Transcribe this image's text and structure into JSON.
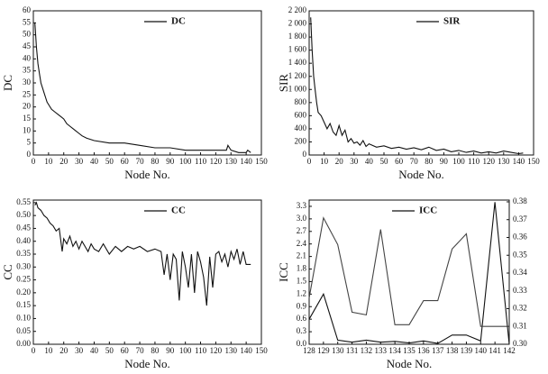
{
  "chart_data": [
    {
      "type": "line",
      "xlabel": "Node No.",
      "ylabel": "DC",
      "legend": "upper right",
      "xlim": [
        0,
        150
      ],
      "xticks": [
        0,
        10,
        20,
        30,
        40,
        50,
        60,
        70,
        80,
        90,
        100,
        110,
        120,
        130,
        140,
        150
      ],
      "ylim": [
        0,
        60
      ],
      "yticks": [
        0,
        5,
        10,
        15,
        20,
        25,
        30,
        35,
        40,
        45,
        50,
        55,
        60
      ],
      "series": [
        {
          "name": "DC",
          "color": "#111111",
          "x": [
            1,
            2,
            3,
            4,
            5,
            6,
            7,
            8,
            9,
            10,
            12,
            14,
            16,
            18,
            20,
            22,
            24,
            26,
            28,
            30,
            32,
            35,
            40,
            50,
            60,
            70,
            80,
            90,
            100,
            110,
            120,
            127,
            128,
            129,
            130,
            135,
            140,
            141,
            143
          ],
          "values": [
            55,
            45,
            38,
            34,
            30,
            28,
            26,
            24,
            22,
            21,
            19,
            18,
            17,
            16,
            15,
            13,
            12,
            11,
            10,
            9,
            8,
            7,
            6,
            5,
            5,
            4,
            3,
            3,
            2,
            2,
            2,
            2,
            4,
            3,
            2,
            1,
            1,
            2,
            1
          ]
        }
      ]
    },
    {
      "type": "line",
      "xlabel": "Node No.",
      "ylabel": "SIR",
      "legend": "upper right",
      "xlim": [
        0,
        150
      ],
      "xticks": [
        0,
        10,
        20,
        30,
        40,
        50,
        60,
        70,
        80,
        90,
        100,
        110,
        120,
        130,
        140,
        150
      ],
      "ylim": [
        0,
        2200
      ],
      "yticks": [
        0,
        200,
        400,
        600,
        800,
        {
          "value": 1000,
          "label": "1 000"
        },
        {
          "value": 1200,
          "label": "1 200"
        },
        {
          "value": 1400,
          "label": "1 400"
        },
        {
          "value": 1600,
          "label": "1 600"
        },
        {
          "value": 1800,
          "label": "1 800"
        },
        {
          "value": 2000,
          "label": "2 000"
        },
        {
          "value": 2200,
          "label": "2 200"
        }
      ],
      "series": [
        {
          "name": "SIR",
          "color": "#111111",
          "x": [
            1,
            2,
            3,
            4,
            5,
            6,
            8,
            10,
            12,
            14,
            16,
            18,
            20,
            22,
            24,
            26,
            28,
            30,
            32,
            34,
            36,
            38,
            40,
            45,
            50,
            55,
            60,
            65,
            70,
            75,
            80,
            85,
            90,
            95,
            100,
            105,
            110,
            115,
            120,
            125,
            130,
            135,
            140,
            143
          ],
          "values": [
            2100,
            1600,
            1200,
            1000,
            800,
            650,
            600,
            500,
            400,
            480,
            350,
            300,
            450,
            300,
            380,
            200,
            250,
            180,
            200,
            150,
            220,
            130,
            170,
            120,
            140,
            100,
            120,
            90,
            110,
            80,
            120,
            70,
            90,
            50,
            70,
            40,
            60,
            30,
            50,
            30,
            60,
            40,
            20,
            30
          ]
        }
      ]
    },
    {
      "type": "line",
      "xlabel": "Node No.",
      "ylabel": "CC",
      "legend": "upper right",
      "xlim": [
        0,
        150
      ],
      "xticks": [
        0,
        10,
        20,
        30,
        40,
        50,
        60,
        70,
        80,
        90,
        100,
        110,
        120,
        130,
        140,
        150
      ],
      "ylim": [
        0,
        0.56
      ],
      "yticks": [
        {
          "value": 0,
          "label": "0.00"
        },
        0.05,
        {
          "value": 0.1,
          "label": "0.10"
        },
        0.15,
        {
          "value": 0.2,
          "label": "0.20"
        },
        0.25,
        {
          "value": 0.3,
          "label": "0.30"
        },
        0.35,
        {
          "value": 0.4,
          "label": "0.40"
        },
        0.45,
        {
          "value": 0.5,
          "label": "0.50"
        },
        0.55
      ],
      "series": [
        {
          "name": "CC",
          "color": "#111111",
          "x": [
            1,
            2,
            3,
            5,
            7,
            9,
            11,
            13,
            15,
            17,
            19,
            20,
            22,
            24,
            26,
            28,
            30,
            32,
            34,
            36,
            38,
            40,
            43,
            46,
            50,
            54,
            58,
            62,
            66,
            70,
            75,
            80,
            84,
            86,
            88,
            90,
            92,
            94,
            96,
            98,
            100,
            102,
            104,
            106,
            108,
            110,
            112,
            114,
            116,
            118,
            120,
            122,
            124,
            126,
            128,
            130,
            132,
            134,
            136,
            138,
            140,
            143
          ],
          "values": [
            0.54,
            0.55,
            0.53,
            0.52,
            0.5,
            0.49,
            0.47,
            0.46,
            0.44,
            0.45,
            0.36,
            0.41,
            0.39,
            0.42,
            0.38,
            0.4,
            0.37,
            0.4,
            0.38,
            0.36,
            0.39,
            0.37,
            0.36,
            0.39,
            0.35,
            0.38,
            0.36,
            0.38,
            0.37,
            0.38,
            0.36,
            0.37,
            0.36,
            0.27,
            0.35,
            0.25,
            0.35,
            0.33,
            0.17,
            0.36,
            0.3,
            0.22,
            0.35,
            0.2,
            0.36,
            0.32,
            0.26,
            0.15,
            0.34,
            0.22,
            0.35,
            0.36,
            0.32,
            0.35,
            0.3,
            0.36,
            0.33,
            0.37,
            0.31,
            0.36,
            0.31,
            0.31
          ]
        }
      ]
    },
    {
      "type": "line",
      "xlabel": "Node No.",
      "ylabel": "ICC",
      "legend": "upper right",
      "xlim": [
        128,
        142
      ],
      "xticks": [
        128,
        129,
        130,
        131,
        132,
        133,
        134,
        135,
        136,
        137,
        138,
        139,
        140,
        141,
        142
      ],
      "ylim": [
        0,
        3.45
      ],
      "yticks": [
        {
          "value": 0,
          "label": "0.0"
        },
        0.3,
        0.6,
        0.9,
        1.2,
        1.5,
        1.8,
        2.1,
        2.4,
        2.7,
        {
          "value": 3,
          "label": "3.0"
        },
        3.3
      ],
      "y2lim": [
        0.3,
        0.381
      ],
      "y2ticks": [
        {
          "value": 0.3,
          "label": "0.30"
        },
        0.31,
        0.32,
        0.33,
        0.34,
        0.35,
        0.36,
        0.37,
        0.38
      ],
      "series": [
        {
          "name": "ICC",
          "color": "#111111",
          "x": [
            128,
            129,
            130,
            131,
            132,
            133,
            134,
            135,
            136,
            137,
            138,
            139,
            140,
            141,
            142
          ],
          "values": [
            0.6,
            1.2,
            0.1,
            0.05,
            0.1,
            0.05,
            0.07,
            0.03,
            0.08,
            0.02,
            0.22,
            0.22,
            0.08,
            3.4,
            0
          ]
        },
        {
          "color": "#444444",
          "axis": "y2",
          "x": [
            128,
            129,
            130,
            131,
            132,
            133,
            134,
            135,
            136,
            137,
            138,
            139,
            140,
            141,
            142
          ],
          "values": [
            0.326,
            0.371,
            0.356,
            0.318,
            0.3165,
            0.3645,
            0.311,
            0.311,
            0.3245,
            0.3245,
            0.3535,
            0.362,
            0.31,
            0.31,
            0.31
          ]
        }
      ]
    }
  ]
}
